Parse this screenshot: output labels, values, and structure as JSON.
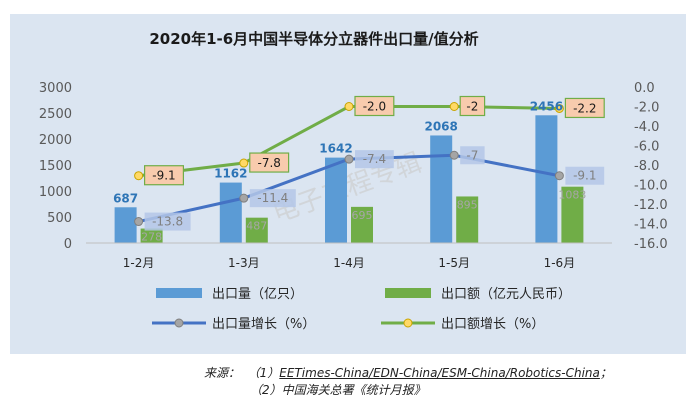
{
  "chart_data": {
    "type": "bar",
    "title": "2020年1-6月中国半导体分立器件出口量/值分析",
    "categories": [
      "1-2月",
      "1-3月",
      "1-4月",
      "1-5月",
      "1-6月"
    ],
    "y_left": {
      "lim": [
        0,
        3000
      ],
      "ticks": [
        "0",
        "500",
        "1000",
        "1500",
        "2000",
        "2500",
        "3000"
      ]
    },
    "y_right": {
      "lim": [
        -16.0,
        0.0
      ],
      "ticks": [
        "0.0",
        "-2.0",
        "-4.0",
        "-6.0",
        "-8.0",
        "-10.0",
        "-12.0",
        "-14.0",
        "-16.0"
      ]
    },
    "series": [
      {
        "name": "出口量（亿只）",
        "kind": "bar",
        "axis": "left",
        "color": "#5b9bd5",
        "values": [
          687,
          1162,
          1642,
          2068,
          2456
        ],
        "labels": [
          "687",
          "1162",
          "1642",
          "2068",
          "2456"
        ]
      },
      {
        "name": "出口额（亿元人民币）",
        "kind": "bar",
        "axis": "left",
        "color": "#70ad47",
        "values": [
          278,
          487,
          695,
          895,
          1083
        ],
        "labels": [
          "278",
          "487",
          "695",
          "895",
          "1083"
        ]
      },
      {
        "name": "出口量增长（%）",
        "kind": "line",
        "axis": "right",
        "color": "#4472c4",
        "values": [
          -13.8,
          -11.4,
          -7.4,
          -7.0,
          -9.1
        ],
        "labels": [
          "-13.8",
          "-11.4",
          "-7.4",
          "-7",
          "-9.1"
        ]
      },
      {
        "name": "出口额增长（%）",
        "kind": "line",
        "axis": "right",
        "color": "#70ad47",
        "values": [
          -9.1,
          -7.8,
          -2.0,
          -2.0,
          -2.2
        ],
        "labels": [
          "-9.1",
          "-7.8",
          "-2.0",
          "-2",
          "-2.2"
        ]
      }
    ],
    "legend_position": "bottom",
    "grid": false,
    "watermark": "电子工程专辑"
  },
  "source": {
    "prefix": "来源：",
    "line1_num": "（1）",
    "line1_text": "EETimes-China/EDN-China/ESM-China/Robotics-China",
    "line1_end": "；",
    "line2": "（2）中国海关总署《统计月报》"
  }
}
